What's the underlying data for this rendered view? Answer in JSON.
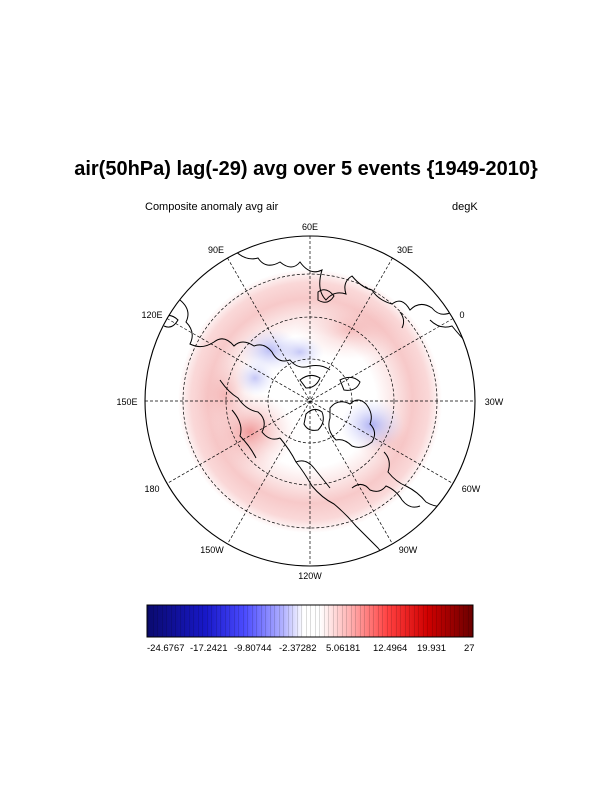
{
  "title": "air(50hPa) lag(-29) avg over 5 events {1949-2010}",
  "subtitle_left": "Composite anomaly avg air",
  "subtitle_right": "degK",
  "map": {
    "projection": "north-polar-stereographic",
    "lon_labels": [
      "60E",
      "30E",
      "0",
      "30W",
      "60W",
      "90W",
      "120W",
      "150W",
      "180",
      "150E",
      "120E",
      "90E"
    ],
    "features": [
      "coastlines",
      "dashed lat-lon grid"
    ],
    "anomaly_pattern": [
      {
        "region": "mid-latitude ring",
        "sign": "positive",
        "approx_value": 4
      },
      {
        "region": "North Pacific / Alaska",
        "sign": "positive",
        "approx_value": 9
      },
      {
        "region": "North Atlantic / Greenland",
        "sign": "negative",
        "approx_value": -6
      },
      {
        "region": "Siberian Arctic",
        "sign": "negative",
        "approx_value": -4
      }
    ]
  },
  "colorbar": {
    "labels": [
      "-24.6767",
      "-17.2421",
      "-9.80744",
      "-2.37282",
      "5.06181",
      "12.4964",
      "19.931",
      "27"
    ],
    "min": -24.6767,
    "max": 27,
    "colors": {
      "low": "#0a0a80",
      "mid_low": "#3030ff",
      "center": "#ffffff",
      "mid_high": "#ff2020",
      "high": "#7a0000"
    }
  }
}
